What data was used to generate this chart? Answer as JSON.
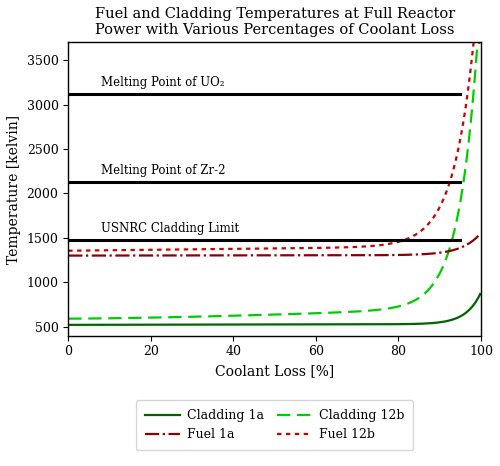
{
  "title": "Fuel and Cladding Temperatures at Full Reactor\nPower with Various Percentages of Coolant Loss",
  "xlabel": "Coolant Loss [%]",
  "ylabel": "Temperature [kelvin]",
  "xlim": [
    0,
    100
  ],
  "ylim": [
    400,
    3700
  ],
  "yticks": [
    500,
    1000,
    1500,
    2000,
    2500,
    3000,
    3500
  ],
  "xticks": [
    0,
    20,
    40,
    60,
    80,
    100
  ],
  "melting_uo2": 3120,
  "melting_zr2": 2128,
  "usnrc_limit": 1477,
  "melting_uo2_label": "Melting Point of UO₂",
  "melting_zr2_label": "Melting Point of Zr-2",
  "usnrc_label": "USNRC Cladding Limit",
  "colors": {
    "cladding_1a": "#006400",
    "cladding_12b": "#00cc00",
    "fuel_1a": "#8b0000",
    "fuel_12b": "#cc0000"
  },
  "legend": {
    "cladding_1a": "Cladding 1a",
    "cladding_12b": "Cladding 12b",
    "fuel_1a": "Fuel 1a",
    "fuel_12b": "Fuel 12b"
  }
}
